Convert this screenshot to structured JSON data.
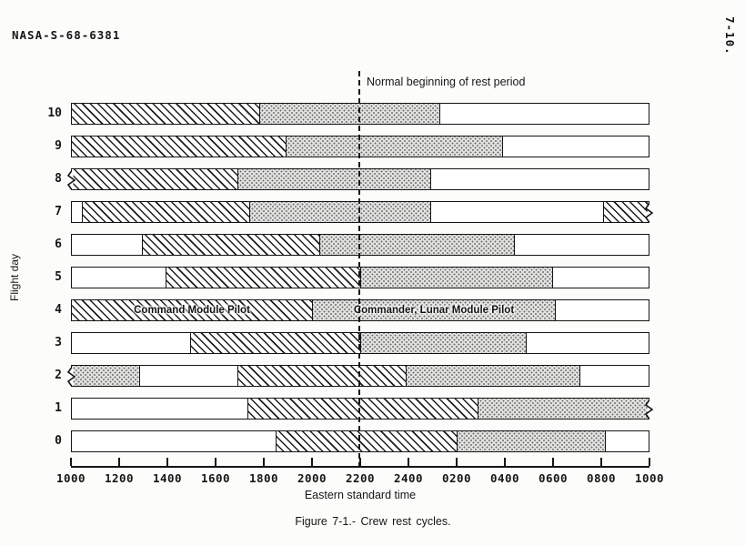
{
  "page": {
    "doc_number": "NASA-S-68-6381",
    "page_number": "7-10.",
    "caption": "Figure 7-1.- Crew rest cycles."
  },
  "chart_data": {
    "type": "bar",
    "subtype": "gantt-rest-cycles",
    "title": "Crew rest cycles",
    "xlabel": "Eastern standard time",
    "ylabel": "Flight day",
    "x_axis": {
      "start": "1000",
      "end": "1000",
      "span_hours": 24,
      "ticks": [
        "1000",
        "1200",
        "1400",
        "1600",
        "1800",
        "2000",
        "2200",
        "2400",
        "0200",
        "0400",
        "0600",
        "0800",
        "1000"
      ]
    },
    "annotation": {
      "label": "Normal beginning of rest period",
      "time": "2200"
    },
    "legend": {
      "hatch": "Command Module Pilot",
      "stipple": "Commander, Lunar Module Pilot"
    },
    "days": [
      {
        "day": 10,
        "segments": [
          {
            "pattern": "hatch",
            "from": "1000",
            "to": "1745",
            "f0": 0,
            "f1": 0.325
          },
          {
            "pattern": "stipple",
            "from": "1745",
            "to": "0115",
            "f0": 0.325,
            "f1": 0.6375
          },
          {
            "pattern": "blank",
            "from": "0115",
            "to": "1000",
            "f0": 0.6375,
            "f1": 1
          }
        ]
      },
      {
        "day": 9,
        "segments": [
          {
            "pattern": "hatch",
            "from": "1000",
            "to": "1855",
            "f0": 0,
            "f1": 0.37
          },
          {
            "pattern": "stipple",
            "from": "1855",
            "to": "0355",
            "f0": 0.37,
            "f1": 0.746
          },
          {
            "pattern": "blank",
            "from": "0355",
            "to": "1000",
            "f0": 0.746,
            "f1": 1
          }
        ]
      },
      {
        "day": 8,
        "break": "left",
        "segments": [
          {
            "pattern": "hatch",
            "from": "1000",
            "to": "1655",
            "f0": 0,
            "f1": 0.2875
          },
          {
            "pattern": "stipple",
            "from": "1655",
            "to": "0055",
            "f0": 0.2875,
            "f1": 0.621
          },
          {
            "pattern": "blank",
            "from": "0055",
            "to": "1000",
            "f0": 0.621,
            "f1": 1
          }
        ]
      },
      {
        "day": 7,
        "break": "right",
        "segments": [
          {
            "pattern": "blank",
            "from": "1000",
            "to": "1025",
            "f0": 0,
            "f1": 0.017
          },
          {
            "pattern": "hatch",
            "from": "1025",
            "to": "1725",
            "f0": 0.017,
            "f1": 0.308
          },
          {
            "pattern": "stipple",
            "from": "1725",
            "to": "0055",
            "f0": 0.308,
            "f1": 0.621
          },
          {
            "pattern": "blank",
            "from": "0055",
            "to": "0805",
            "f0": 0.621,
            "f1": 0.921
          },
          {
            "pattern": "hatch",
            "from": "0805",
            "to": "1000",
            "f0": 0.921,
            "f1": 1
          }
        ]
      },
      {
        "day": 6,
        "segments": [
          {
            "pattern": "blank",
            "from": "1000",
            "to": "1255",
            "f0": 0,
            "f1": 0.121
          },
          {
            "pattern": "hatch",
            "from": "1255",
            "to": "2015",
            "f0": 0.121,
            "f1": 0.429
          },
          {
            "pattern": "stipple",
            "from": "2015",
            "to": "0425",
            "f0": 0.429,
            "f1": 0.767
          },
          {
            "pattern": "blank",
            "from": "0425",
            "to": "1000",
            "f0": 0.767,
            "f1": 1
          }
        ]
      },
      {
        "day": 5,
        "segments": [
          {
            "pattern": "blank",
            "from": "1000",
            "to": "1355",
            "f0": 0,
            "f1": 0.1625
          },
          {
            "pattern": "hatch",
            "from": "1355",
            "to": "2200",
            "f0": 0.1625,
            "f1": 0.5
          },
          {
            "pattern": "stipple",
            "from": "2200",
            "to": "0600",
            "f0": 0.5,
            "f1": 0.8335
          },
          {
            "pattern": "blank",
            "from": "0600",
            "to": "1000",
            "f0": 0.8335,
            "f1": 1
          }
        ]
      },
      {
        "day": 4,
        "segments": [
          {
            "pattern": "hatch",
            "from": "1000",
            "to": "2000",
            "f0": 0,
            "f1": 0.4165,
            "label": "Command Module Pilot"
          },
          {
            "pattern": "stipple",
            "from": "2000",
            "to": "0605",
            "f0": 0.4165,
            "f1": 0.8375,
            "label": "Commander, Lunar Module Pilot"
          },
          {
            "pattern": "blank",
            "from": "0605",
            "to": "1000",
            "f0": 0.8375,
            "f1": 1
          }
        ]
      },
      {
        "day": 3,
        "segments": [
          {
            "pattern": "blank",
            "from": "1000",
            "to": "1455",
            "f0": 0,
            "f1": 0.2045
          },
          {
            "pattern": "hatch",
            "from": "1455",
            "to": "2200",
            "f0": 0.2045,
            "f1": 0.5
          },
          {
            "pattern": "stipple",
            "from": "2200",
            "to": "0455",
            "f0": 0.5,
            "f1": 0.7875
          },
          {
            "pattern": "blank",
            "from": "0455",
            "to": "1000",
            "f0": 0.7875,
            "f1": 1
          }
        ]
      },
      {
        "day": 2,
        "break": "left",
        "segments": [
          {
            "pattern": "stipple",
            "from": "1000",
            "to": "1250",
            "f0": 0,
            "f1": 0.117
          },
          {
            "pattern": "blank",
            "from": "1250",
            "to": "1655",
            "f0": 0.117,
            "f1": 0.2875
          },
          {
            "pattern": "hatch",
            "from": "1655",
            "to": "2355",
            "f0": 0.2875,
            "f1": 0.579
          },
          {
            "pattern": "stipple",
            "from": "2355",
            "to": "0705",
            "f0": 0.579,
            "f1": 0.8795
          },
          {
            "pattern": "blank",
            "from": "0705",
            "to": "1000",
            "f0": 0.8795,
            "f1": 1
          }
        ]
      },
      {
        "day": 1,
        "break": "right",
        "segments": [
          {
            "pattern": "blank",
            "from": "1000",
            "to": "1720",
            "f0": 0,
            "f1": 0.3045
          },
          {
            "pattern": "hatch",
            "from": "1720",
            "to": "0255",
            "f0": 0.3045,
            "f1": 0.704
          },
          {
            "pattern": "stipple",
            "from": "0255",
            "to": "1000",
            "f0": 0.704,
            "f1": 1
          }
        ]
      },
      {
        "day": 0,
        "segments": [
          {
            "pattern": "blank",
            "from": "1000",
            "to": "1830",
            "f0": 0,
            "f1": 0.354
          },
          {
            "pattern": "hatch",
            "from": "1830",
            "to": "0200",
            "f0": 0.354,
            "f1": 0.6665
          },
          {
            "pattern": "stipple",
            "from": "0200",
            "to": "0810",
            "f0": 0.6665,
            "f1": 0.925
          },
          {
            "pattern": "blank",
            "from": "0810",
            "to": "1000",
            "f0": 0.925,
            "f1": 1
          }
        ]
      }
    ]
  }
}
